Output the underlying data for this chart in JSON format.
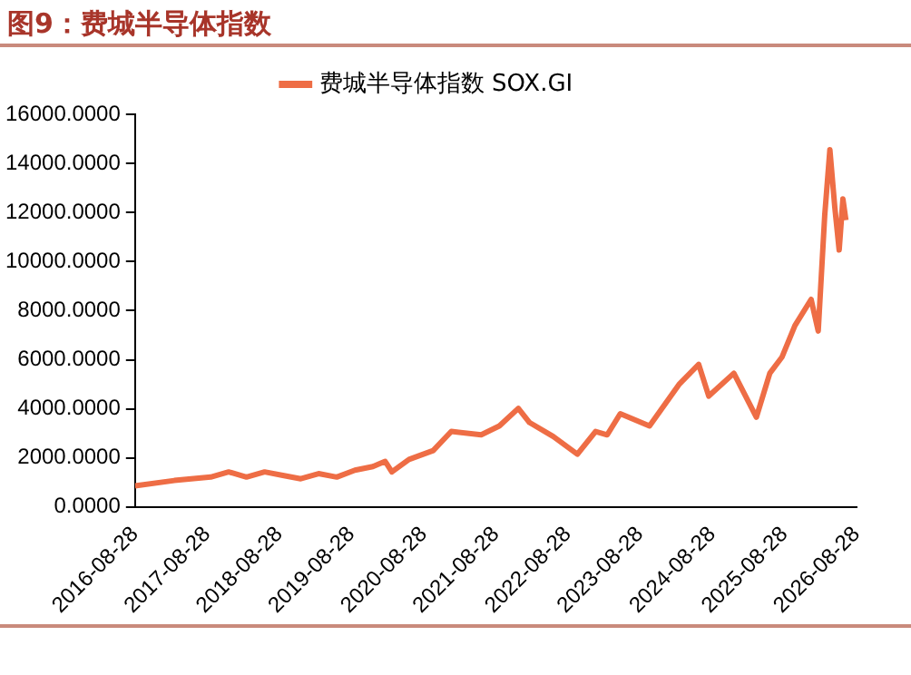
{
  "chart_data": {
    "type": "line",
    "title": "图9：费城半导体指数",
    "x": [
      "2016-08-28",
      "2017-03-15",
      "2017-09-15",
      "2017-12-15",
      "2018-03-15",
      "2018-06-15",
      "2018-09-15",
      "2018-12-15",
      "2019-03-15",
      "2019-06-15",
      "2019-09-15",
      "2019-12-15",
      "2020-02-15",
      "2020-03-20",
      "2020-06-15",
      "2020-10-15",
      "2021-01-15",
      "2021-06-15",
      "2021-09-15",
      "2021-12-20",
      "2022-02-15",
      "2022-06-15",
      "2022-10-15",
      "2023-01-15",
      "2023-03-15",
      "2023-05-20",
      "2023-10-15",
      "2024-03-15",
      "2024-06-20",
      "2024-08-10",
      "2024-12-15",
      "2025-04-08",
      "2025-06-15",
      "2025-08-15",
      "2025-10-20",
      "2026-01-10",
      "2026-02-15",
      "2026-03-20",
      "2026-04-15",
      "2026-05-10",
      "2026-06-01",
      "2026-06-20",
      "2026-07-05"
    ],
    "series": [
      {
        "name": "费城半导体指数 SOX.GI",
        "color": "#ee6d45",
        "values": [
          860,
          1080,
          1220,
          1430,
          1220,
          1430,
          1290,
          1150,
          1360,
          1220,
          1500,
          1650,
          1860,
          1430,
          1940,
          2300,
          3080,
          2940,
          3300,
          4020,
          3440,
          2870,
          2150,
          3080,
          2940,
          3800,
          3300,
          5020,
          5810,
          4520,
          5450,
          3660,
          5450,
          6100,
          7390,
          8460,
          7170,
          11900,
          14560,
          12200,
          10470,
          12550,
          11690
        ]
      }
    ],
    "ylim": [
      0,
      16000
    ],
    "yticks": [
      {
        "value": 0,
        "label": "0.0000"
      },
      {
        "value": 2000,
        "label": "2000.0000"
      },
      {
        "value": 4000,
        "label": "4000.0000"
      },
      {
        "value": 6000,
        "label": "6000.0000"
      },
      {
        "value": 8000,
        "label": "8000.0000"
      },
      {
        "value": 10000,
        "label": "10000.0000"
      },
      {
        "value": 12000,
        "label": "12000.0000"
      },
      {
        "value": 14000,
        "label": "14000.0000"
      },
      {
        "value": 16000,
        "label": "16000.0000"
      }
    ],
    "xlim": [
      "2016-08-28",
      "2026-08-28"
    ],
    "xticks": [
      "2016-08-28",
      "2017-08-28",
      "2018-08-28",
      "2019-08-28",
      "2020-08-28",
      "2021-08-28",
      "2022-08-28",
      "2023-08-28",
      "2024-08-28",
      "2025-08-28",
      "2026-08-28"
    ],
    "grid": false,
    "legend": "top",
    "marker": "none",
    "line_style": "solid"
  }
}
